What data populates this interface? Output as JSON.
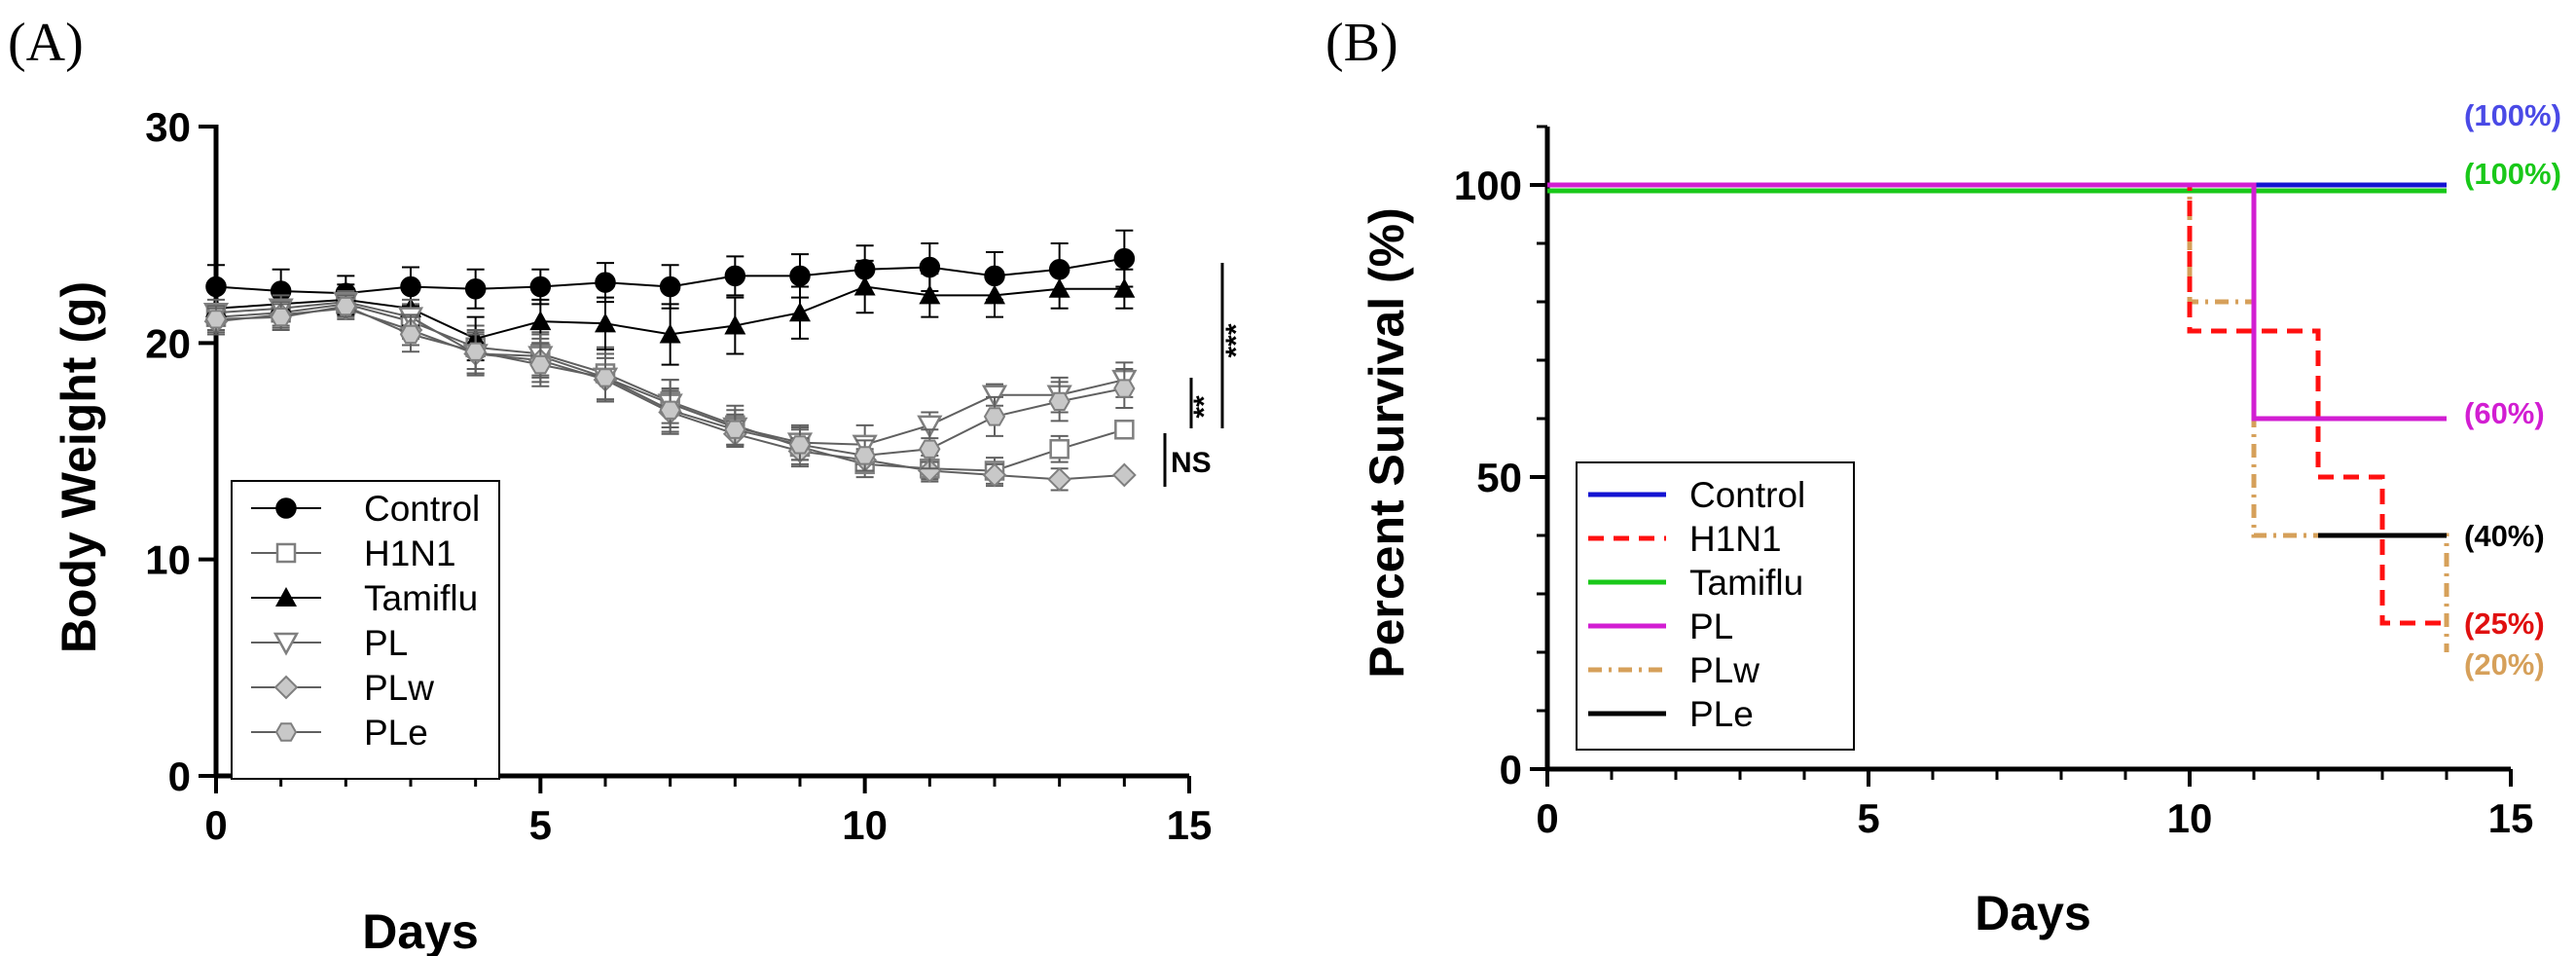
{
  "chart_data": [
    {
      "panel": "(A)",
      "type": "line",
      "xlabel": "Days",
      "ylabel": "Body Weight (g)",
      "xlim": [
        0,
        15
      ],
      "ylim": [
        0,
        30
      ],
      "x_ticks": [
        "0",
        "5",
        "10",
        "15"
      ],
      "y_ticks": [
        "0",
        "10",
        "20",
        "30"
      ],
      "x": [
        0,
        1,
        2,
        3,
        4,
        5,
        6,
        7,
        8,
        9,
        10,
        11,
        12,
        13,
        14
      ],
      "series": [
        {
          "name": "Control",
          "marker": "circle-filled",
          "values": [
            22.6,
            22.4,
            22.3,
            22.6,
            22.5,
            22.6,
            22.8,
            22.6,
            23.1,
            23.1,
            23.4,
            23.5,
            23.1,
            23.4,
            23.9
          ],
          "error": [
            1.0,
            1.0,
            0.8,
            0.9,
            0.9,
            0.8,
            0.9,
            1.0,
            0.9,
            1.0,
            1.1,
            1.1,
            1.1,
            1.2,
            1.3
          ]
        },
        {
          "name": "H1N1",
          "marker": "square-open",
          "values": [
            21.2,
            21.4,
            21.8,
            21.0,
            19.8,
            19.5,
            18.6,
            17.3,
            16.2,
            15.2,
            14.4,
            14.2,
            14.1,
            15.1,
            16.0
          ],
          "error": [
            0.6,
            0.6,
            0.5,
            0.8,
            1.0,
            1.0,
            1.2,
            1.0,
            0.9,
            0.9,
            0.6,
            0.6,
            0.6,
            0.6,
            0.0
          ]
        },
        {
          "name": "Tamiflu",
          "marker": "triangle-up-filled",
          "values": [
            21.6,
            21.8,
            22.0,
            21.6,
            20.2,
            21.0,
            20.9,
            20.4,
            20.8,
            21.4,
            22.6,
            22.2,
            22.2,
            22.5,
            22.5
          ],
          "error": [
            0.8,
            0.8,
            0.7,
            0.8,
            1.0,
            1.0,
            1.2,
            1.4,
            1.3,
            1.2,
            1.2,
            1.0,
            1.0,
            0.9,
            0.9
          ]
        },
        {
          "name": "PL",
          "marker": "triangle-down-open",
          "values": [
            21.4,
            21.6,
            21.9,
            21.2,
            19.5,
            19.4,
            18.4,
            17.2,
            16.1,
            15.4,
            15.3,
            16.2,
            17.6,
            17.6,
            18.3
          ],
          "error": [
            0.6,
            0.6,
            0.5,
            0.8,
            1.0,
            1.0,
            1.1,
            1.1,
            0.8,
            0.8,
            0.9,
            0.6,
            0.5,
            0.8,
            0.8
          ]
        },
        {
          "name": "PLw",
          "marker": "diamond-filled",
          "values": [
            21.0,
            21.3,
            21.6,
            20.6,
            19.5,
            19.2,
            18.3,
            16.8,
            15.8,
            15.0,
            14.6,
            14.1,
            13.9,
            13.7,
            13.9
          ],
          "error": [
            0.6,
            0.6,
            0.5,
            0.7,
            0.9,
            1.0,
            1.0,
            1.0,
            0.6,
            0.6,
            0.5,
            0.4,
            0.5,
            0.5,
            0.0
          ]
        },
        {
          "name": "PLe",
          "marker": "hexagon-filled",
          "values": [
            21.1,
            21.2,
            21.7,
            20.4,
            19.6,
            19.0,
            18.4,
            16.9,
            16.0,
            15.3,
            14.8,
            15.1,
            16.6,
            17.3,
            17.9
          ],
          "error": [
            0.6,
            0.6,
            0.5,
            0.8,
            1.0,
            1.0,
            1.1,
            1.0,
            0.7,
            0.7,
            0.7,
            0.9,
            0.9,
            0.9,
            0.9
          ]
        }
      ],
      "annotations": [
        "NS",
        "**",
        "***"
      ],
      "legend_position": "bottom-left",
      "grid": false
    },
    {
      "panel": "(B)",
      "type": "line",
      "subtype": "step",
      "xlabel": "Days",
      "ylabel": "Percent Survival (%)",
      "xlim": [
        0,
        15
      ],
      "ylim": [
        0,
        100
      ],
      "x_ticks": [
        "0",
        "5",
        "10",
        "15"
      ],
      "y_ticks": [
        "0",
        "50",
        "100"
      ],
      "series": [
        {
          "name": "Control",
          "color": "#1414d2",
          "dash": "solid",
          "x": [
            0,
            14
          ],
          "values": [
            100,
            100
          ],
          "end_label": "(100%)",
          "end_label_color": "#4a4ae6"
        },
        {
          "name": "H1N1",
          "color": "#ff1010",
          "dash": "dash",
          "x": [
            0,
            10,
            12,
            13,
            14
          ],
          "values": [
            100,
            75,
            50,
            25,
            25
          ],
          "end_label": "(25%)",
          "end_label_color": "#e01010"
        },
        {
          "name": "Tamiflu",
          "color": "#19c819",
          "dash": "solid",
          "x": [
            0,
            14
          ],
          "values": [
            99,
            99
          ],
          "end_label": "(100%)",
          "end_label_color": "#19c819"
        },
        {
          "name": "PL",
          "color": "#d21ed2",
          "dash": "solid",
          "x": [
            0,
            11,
            14
          ],
          "values": [
            100,
            60,
            60
          ],
          "end_label": "(60%)",
          "end_label_color": "#d21ed2"
        },
        {
          "name": "PLw",
          "color": "#d6a05a",
          "dash": "dashdot",
          "x": [
            0,
            10,
            10.5,
            11,
            14
          ],
          "values": [
            100,
            80,
            80,
            40,
            20
          ],
          "end_label": "(20%)",
          "end_label_color": "#d6a05a"
        },
        {
          "name": "PLe",
          "color": "#000000",
          "dash": "solid",
          "x": [
            12,
            14
          ],
          "values": [
            40,
            40
          ],
          "end_label": "(40%)",
          "end_label_color": "#000000"
        }
      ],
      "legend_position": "bottom-left",
      "grid": false
    }
  ]
}
